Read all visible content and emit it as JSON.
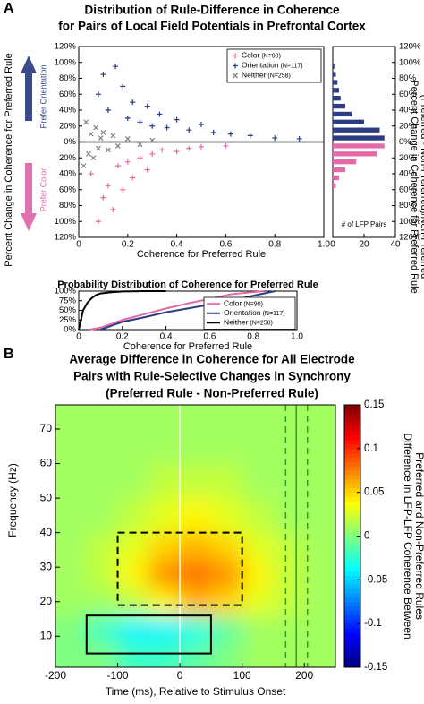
{
  "panel_labels": [
    "A",
    "B"
  ],
  "chart_data": [
    {
      "type": "scatter",
      "title": [
        "Distribution of Rule-Difference in Coherence",
        "for Pairs of Local Field Potentials in Prefrontal Cortex"
      ],
      "x_label": "Coherence for Preferred Rule",
      "y_label": "Percent Change in Coherence for Preferred Rule",
      "annotations": [
        {
          "text": "Prefer Orientation",
          "color": "#3a4a8a"
        },
        {
          "text": "Prefer Color",
          "color": "#e070b0"
        }
      ],
      "xlim": [
        0,
        1
      ],
      "xticks": [
        0,
        0.2,
        0.4,
        0.6,
        0.8,
        {
          "value": 1,
          "label": "1.0"
        }
      ],
      "ylim": [
        -120,
        120
      ],
      "yticks": [
        {
          "value": 120,
          "label": "120%"
        },
        {
          "value": 100,
          "label": "100%"
        },
        {
          "value": 80,
          "label": "80%"
        },
        {
          "value": 60,
          "label": "60%"
        },
        {
          "value": 40,
          "label": "40%"
        },
        {
          "value": 20,
          "label": "20%"
        },
        {
          "value": 0,
          "label": "0%"
        },
        {
          "value": -20,
          "label": "20%"
        },
        {
          "value": -40,
          "label": "40%"
        },
        {
          "value": -60,
          "label": "60%"
        },
        {
          "value": -80,
          "label": "80%"
        },
        {
          "value": -100,
          "label": "100%"
        },
        {
          "value": -120,
          "label": "120%"
        }
      ],
      "legend": "upper right",
      "series": [
        {
          "name": "Color",
          "count_label": "(N=90)",
          "color": "#e46aa8",
          "marker": "+",
          "x": [
            0.05,
            0.08,
            0.1,
            0.12,
            0.14,
            0.16,
            0.18,
            0.2,
            0.22,
            0.25,
            0.28,
            0.3,
            0.34,
            0.4,
            0.45,
            0.5,
            0.6
          ],
          "values": [
            -40,
            -100,
            -70,
            -55,
            -85,
            -30,
            -60,
            -25,
            -45,
            -20,
            -35,
            -15,
            -10,
            -12,
            -8,
            -6,
            -5
          ]
        },
        {
          "name": "Orientation",
          "count_label": "(N=117)",
          "color": "#2c3c80",
          "marker": "+",
          "x": [
            0.08,
            0.1,
            0.12,
            0.15,
            0.18,
            0.2,
            0.22,
            0.25,
            0.28,
            0.3,
            0.33,
            0.36,
            0.4,
            0.45,
            0.5,
            0.55,
            0.62,
            0.7,
            0.8,
            0.9
          ],
          "values": [
            60,
            85,
            40,
            95,
            70,
            30,
            50,
            25,
            45,
            20,
            35,
            18,
            28,
            15,
            22,
            12,
            10,
            8,
            5,
            4
          ]
        },
        {
          "name": "Neither",
          "count_label": "(N=258)",
          "color": "#808080",
          "marker": "x",
          "x": [
            0.02,
            0.03,
            0.04,
            0.05,
            0.06,
            0.07,
            0.08,
            0.09,
            0.1,
            0.12,
            0.14,
            0.16,
            0.2,
            0.25,
            0.3
          ],
          "values": [
            -30,
            25,
            -15,
            10,
            -20,
            18,
            -8,
            5,
            12,
            -10,
            8,
            -5,
            4,
            -3,
            2
          ]
        }
      ]
    },
    {
      "type": "histogram",
      "orientation": "horizontal",
      "x_label": "# of LFP Pairs",
      "y_label": [
        "Percent Change in Coherence for Preferred Rule",
        "(Preferred - Non-Preferred)/Non-Preferred"
      ],
      "xlim": [
        0,
        40
      ],
      "xticks": [
        0,
        20,
        40
      ],
      "ylim": [
        -120,
        120
      ],
      "yticks": [
        {
          "value": 120,
          "label": "120%"
        },
        {
          "value": 100,
          "label": "100%"
        },
        {
          "value": 80,
          "label": "80%"
        },
        {
          "value": 60,
          "label": "60%"
        },
        {
          "value": 40,
          "label": "40%"
        },
        {
          "value": 20,
          "label": "20%"
        },
        {
          "value": 0,
          "label": "0%"
        },
        {
          "value": -20,
          "label": "20%"
        },
        {
          "value": -40,
          "label": "40%"
        },
        {
          "value": -60,
          "label": "60%"
        },
        {
          "value": -80,
          "label": "80%"
        },
        {
          "value": -100,
          "label": "100%"
        },
        {
          "value": -120,
          "label": "120%"
        }
      ],
      "bins": [
        -60,
        -50,
        -40,
        -30,
        -20,
        -10,
        0,
        10,
        20,
        30,
        40,
        50,
        60,
        70,
        80,
        90,
        100
      ],
      "series": [
        {
          "name": "Color",
          "color": "#e46aa8",
          "values": [
            2,
            4,
            8,
            15,
            28,
            33,
            0,
            0,
            0,
            0,
            0,
            0,
            0,
            0,
            0,
            0
          ]
        },
        {
          "name": "Orientation",
          "color": "#2c3c80",
          "values": [
            0,
            0,
            0,
            0,
            0,
            0,
            33,
            30,
            20,
            12,
            8,
            5,
            4,
            3,
            2,
            1
          ]
        }
      ]
    },
    {
      "type": "line",
      "title": "Probability Distribution of Coherence for Preferred Rule",
      "x_label": "Coherence for Preferred Rule",
      "xlim": [
        0,
        1
      ],
      "xticks": [
        0,
        0.2,
        0.4,
        0.6,
        0.8,
        {
          "value": 1,
          "label": "1.0"
        }
      ],
      "ylim": [
        0,
        100
      ],
      "yticks": [
        {
          "value": 0,
          "label": "0%"
        },
        {
          "value": 25,
          "label": "25%"
        },
        {
          "value": 50,
          "label": "50%"
        },
        {
          "value": 75,
          "label": "75%"
        },
        {
          "value": 100,
          "label": "100%"
        }
      ],
      "legend": "lower right",
      "series": [
        {
          "name": "Color",
          "count_label": "(N=90)",
          "color": "#e46aa8",
          "x": [
            0.05,
            0.1,
            0.15,
            0.2,
            0.3,
            0.4,
            0.5,
            0.6,
            0.7,
            0.85
          ],
          "values": [
            0,
            5,
            15,
            25,
            40,
            55,
            68,
            80,
            92,
            100
          ]
        },
        {
          "name": "Orientation",
          "count_label": "(N=117)",
          "color": "#2c3c80",
          "x": [
            0.1,
            0.15,
            0.2,
            0.3,
            0.4,
            0.5,
            0.6,
            0.7,
            0.8,
            0.9
          ],
          "values": [
            0,
            10,
            20,
            32,
            45,
            55,
            65,
            75,
            88,
            100
          ]
        },
        {
          "name": "Neither",
          "count_label": "(N=258)",
          "color": "#000000",
          "x": [
            0,
            0.02,
            0.04,
            0.06,
            0.08,
            0.1,
            0.15,
            0.2,
            0.3,
            0.4
          ],
          "values": [
            0,
            50,
            70,
            82,
            90,
            94,
            97,
            99,
            100,
            100
          ]
        }
      ]
    },
    {
      "type": "heatmap",
      "title": [
        "Average Difference in Coherence for All Electrode",
        "Pairs with Rule-Selective Changes in Synchrony",
        "(Preferred Rule - Non-Preferred Rule)"
      ],
      "x_label": "Time (ms), Relative to Stimulus Onset",
      "y_label": "Frequency (Hz)",
      "colorbar_label": [
        "Difference in LFP-LFP Coherence Between",
        "Preferred and Non-Preferred Rules"
      ],
      "colormap": "jet",
      "xlim": [
        -200,
        250
      ],
      "xticks": [
        -200,
        -100,
        0,
        100,
        200
      ],
      "ylim": [
        1,
        77
      ],
      "yticks": [
        10,
        20,
        30,
        40,
        50,
        60,
        70
      ],
      "clim": [
        -0.15,
        0.15
      ],
      "cticks": [
        0.15,
        0.1,
        0.05,
        0,
        -0.05,
        -0.1,
        -0.15
      ],
      "x_edges": [
        -200,
        -150,
        -100,
        -50,
        0,
        50,
        100,
        150,
        200,
        250
      ],
      "y_edges": [
        1,
        8,
        16,
        24,
        32,
        40,
        50,
        60,
        77
      ],
      "values": [
        [
          0,
          0,
          -0.02,
          -0.02,
          -0.01,
          0,
          0.01,
          0.01,
          0.01
        ],
        [
          0,
          -0.02,
          -0.04,
          -0.04,
          -0.03,
          -0.01,
          0.01,
          0.01,
          0.01
        ],
        [
          0.01,
          0.01,
          0.02,
          0.04,
          0.06,
          0.05,
          0.03,
          0.02,
          0.01
        ],
        [
          0.01,
          0.02,
          0.04,
          0.07,
          0.08,
          0.07,
          0.04,
          0.02,
          0.01
        ],
        [
          0.01,
          0.02,
          0.03,
          0.05,
          0.06,
          0.05,
          0.03,
          0.02,
          0.01
        ],
        [
          0.01,
          0.01,
          0.02,
          0.03,
          0.04,
          0.03,
          0.02,
          0.01,
          0.01
        ],
        [
          0.01,
          0.01,
          0.01,
          0.02,
          0.02,
          0.02,
          0.01,
          0.01,
          0.01
        ],
        [
          0.01,
          0.01,
          0.01,
          0.01,
          0.01,
          0.01,
          0.01,
          0.01,
          0.01
        ]
      ],
      "boxes": [
        {
          "x": [
            -100,
            100
          ],
          "y": [
            19,
            40
          ],
          "style": "dashed"
        },
        {
          "x": [
            -150,
            50
          ],
          "y": [
            5,
            16
          ],
          "style": "solid"
        }
      ],
      "vlines": [
        {
          "x": 0,
          "color": "#ffffff",
          "style": "solid"
        },
        {
          "x": 170,
          "color": "#2a9a3a",
          "style": "dashed"
        },
        {
          "x": 187,
          "color": "#2a9a3a",
          "style": "solid"
        },
        {
          "x": 205,
          "color": "#2a9a3a",
          "style": "dashed"
        }
      ]
    }
  ]
}
